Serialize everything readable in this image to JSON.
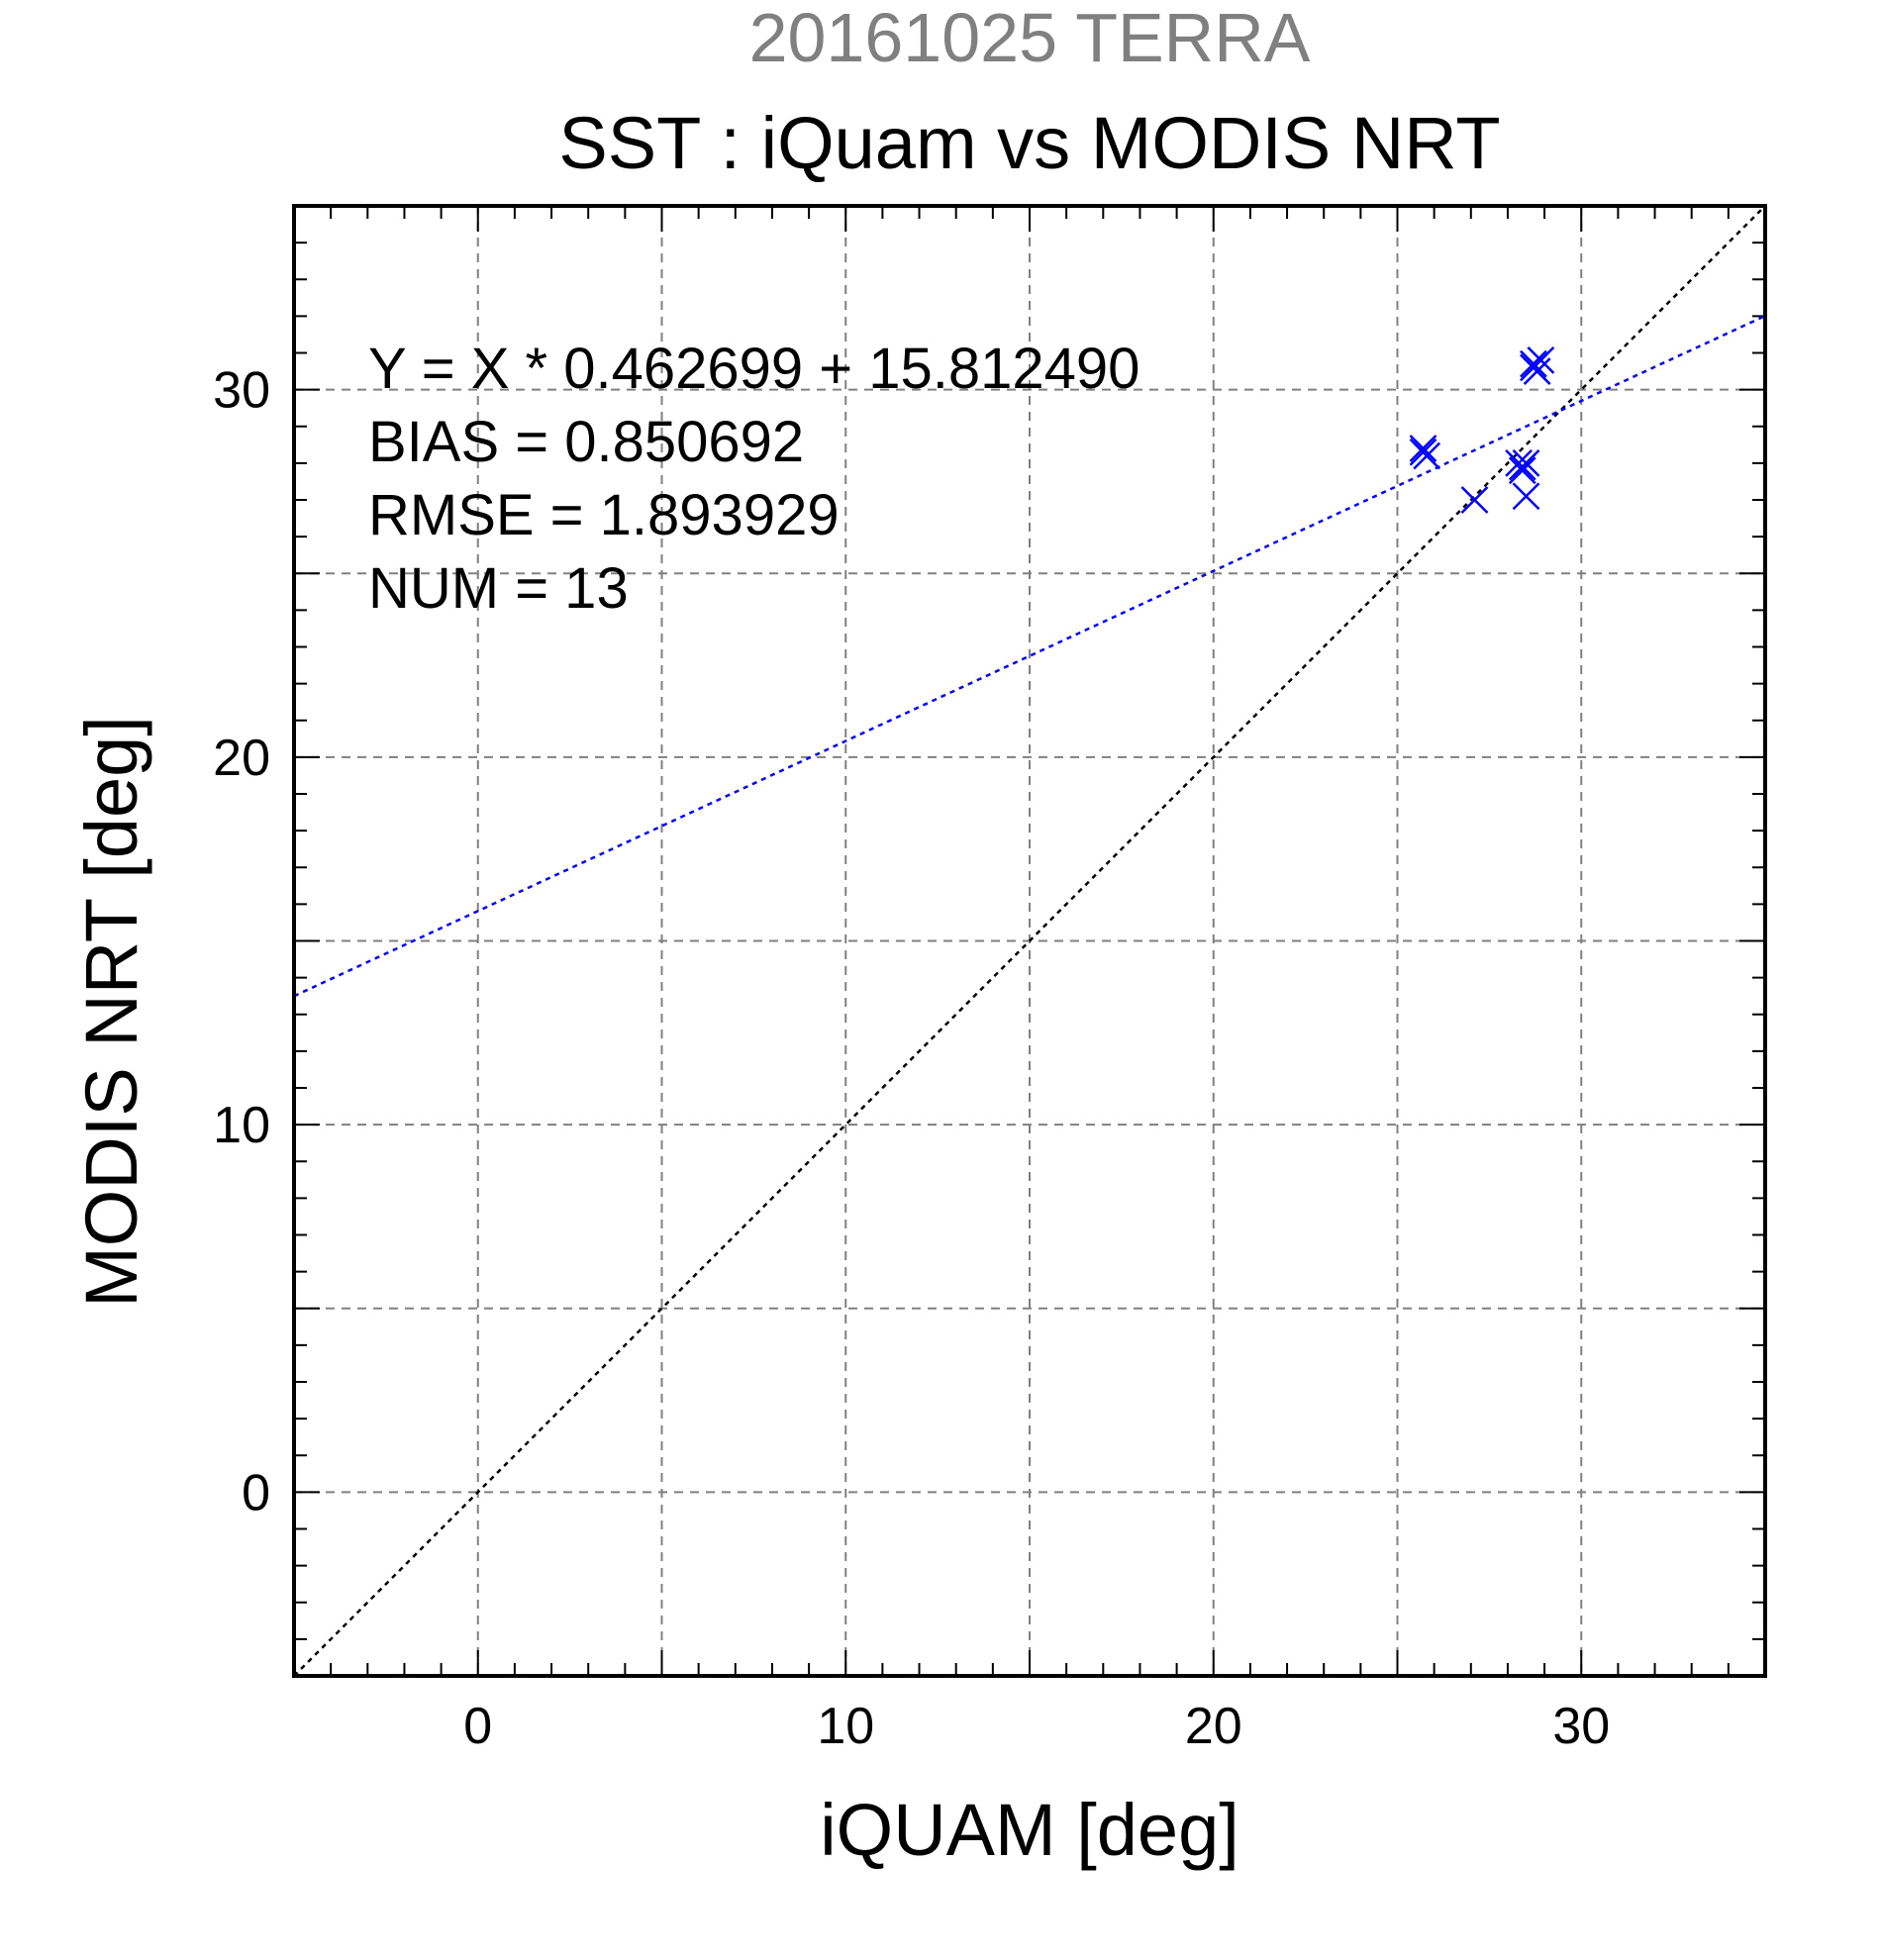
{
  "chart_data": {
    "type": "scatter",
    "title_top": "20161025 TERRA",
    "title": "SST : iQuam vs MODIS NRT",
    "xlabel": "iQUAM [deg]",
    "ylabel": "MODIS NRT [deg]",
    "xlim": [
      -5,
      35
    ],
    "ylim": [
      -5,
      35
    ],
    "major_ticks": [
      0,
      10,
      20,
      30
    ],
    "grid_ticks": [
      0,
      5,
      10,
      15,
      20,
      25,
      30
    ],
    "minor_step": 1,
    "grid": true,
    "stats": [
      "Y = X * 0.462699 + 15.812490",
      "BIAS = 0.850692",
      "RMSE = 1.893929",
      "NUM = 13"
    ],
    "regression": {
      "slope": 0.462699,
      "intercept": 15.81249,
      "color": "#0000ff"
    },
    "identity_line": {
      "color": "#000000"
    },
    "marker_color": "#0000ff",
    "marker": "x",
    "points": [
      {
        "x": 25.7,
        "y": 28.4
      },
      {
        "x": 25.8,
        "y": 28.2
      },
      {
        "x": 25.7,
        "y": 28.3
      },
      {
        "x": 27.1,
        "y": 27.0
      },
      {
        "x": 28.3,
        "y": 28.0
      },
      {
        "x": 28.4,
        "y": 27.9
      },
      {
        "x": 28.5,
        "y": 28.0
      },
      {
        "x": 28.4,
        "y": 27.8
      },
      {
        "x": 28.5,
        "y": 27.1
      },
      {
        "x": 28.7,
        "y": 30.7
      },
      {
        "x": 28.8,
        "y": 30.5
      },
      {
        "x": 28.9,
        "y": 30.8
      },
      {
        "x": 28.7,
        "y": 30.6
      }
    ]
  }
}
